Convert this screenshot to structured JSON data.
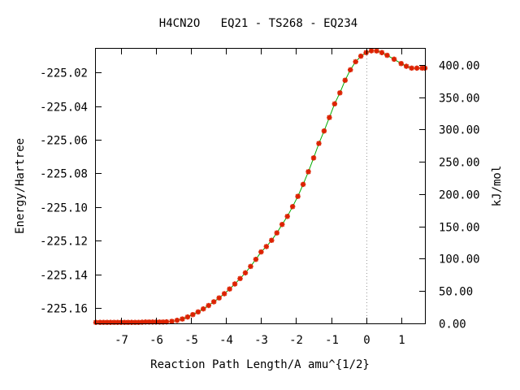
{
  "chart_data": {
    "type": "line",
    "title": "H4CN2O   EQ21 - TS268 - EQ234",
    "xlabel": "Reaction Path Length/A amu^{1/2}",
    "ylabel": "Energy/Hartree",
    "y2label": "kJ/mol",
    "xlim": [
      -7.72,
      1.68
    ],
    "ylim": [
      -225.169,
      -225.006
    ],
    "y2lim": [
      0,
      425
    ],
    "x_ticks": [
      -7,
      -6,
      -5,
      -4,
      -3,
      -2,
      -1,
      0,
      1
    ],
    "x_tick_labels": [
      "-7",
      "-6",
      "-5",
      "-4",
      "-3",
      "-2",
      "-1",
      "0",
      "1"
    ],
    "y_ticks": [
      -225.02,
      -225.04,
      -225.06,
      -225.08,
      -225.1,
      -225.12,
      -225.14,
      -225.16
    ],
    "y_tick_labels": [
      "-225.02",
      "-225.04",
      "-225.06",
      "-225.08",
      "-225.10",
      "-225.12",
      "-225.14",
      "-225.16"
    ],
    "y2_ticks": [
      0,
      50,
      100,
      150,
      200,
      250,
      300,
      350,
      400
    ],
    "y2_tick_labels": [
      "0.00",
      "50.00",
      "100.00",
      "150.00",
      "200.00",
      "250.00",
      "300.00",
      "350.00",
      "400.00"
    ],
    "ts_x": 0,
    "line_color": "#00aa00",
    "marker_color": "#dd2200",
    "series": [
      {
        "x": [
          -7.72,
          -7.6,
          -7.5,
          -7.4,
          -7.3,
          -7.2,
          -7.1,
          -7.0,
          -6.9,
          -6.8,
          -6.7,
          -6.6,
          -6.5,
          -6.4,
          -6.3,
          -6.2,
          -6.1,
          -6.0,
          -5.9,
          -5.8,
          -5.7,
          -5.55,
          -5.4,
          -5.25,
          -5.1,
          -4.95,
          -4.8,
          -4.65,
          -4.5,
          -4.35,
          -4.2,
          -4.05,
          -3.9,
          -3.75,
          -3.6,
          -3.45,
          -3.3,
          -3.15,
          -3.0,
          -2.85,
          -2.7,
          -2.55,
          -2.4,
          -2.25,
          -2.1,
          -1.95,
          -1.8,
          -1.65,
          -1.5,
          -1.35,
          -1.2,
          -1.05,
          -0.9,
          -0.75,
          -0.6,
          -0.45,
          -0.3,
          -0.15,
          0.0,
          0.15,
          0.3,
          0.45,
          0.6,
          0.8,
          1.0,
          1.15,
          1.3,
          1.45,
          1.6,
          1.68
        ],
        "y": [
          -225.1684,
          -225.1684,
          -225.1684,
          -225.1684,
          -225.1684,
          -225.1684,
          -225.1684,
          -225.1684,
          -225.1684,
          -225.1684,
          -225.1684,
          -225.1684,
          -225.1684,
          -225.1683,
          -225.1682,
          -225.1682,
          -225.1682,
          -225.1682,
          -225.1682,
          -225.1682,
          -225.1681,
          -225.1678,
          -225.1672,
          -225.1664,
          -225.1652,
          -225.1638,
          -225.1622,
          -225.1604,
          -225.1584,
          -225.1562,
          -225.1539,
          -225.1514,
          -225.1486,
          -225.1456,
          -225.1424,
          -225.139,
          -225.1352,
          -225.131,
          -225.1266,
          -225.1234,
          -225.1197,
          -225.1153,
          -225.1103,
          -225.1055,
          -225.0997,
          -225.0936,
          -225.0865,
          -225.079,
          -225.0708,
          -225.0622,
          -225.0548,
          -225.0468,
          -225.0387,
          -225.0322,
          -225.0247,
          -225.0185,
          -225.0137,
          -225.0104,
          -225.0083,
          -225.0072,
          -225.0073,
          -225.0083,
          -225.0099,
          -225.0122,
          -225.0148,
          -225.0164,
          -225.0175,
          -225.0175,
          -225.0175,
          -225.0175
        ]
      }
    ]
  }
}
